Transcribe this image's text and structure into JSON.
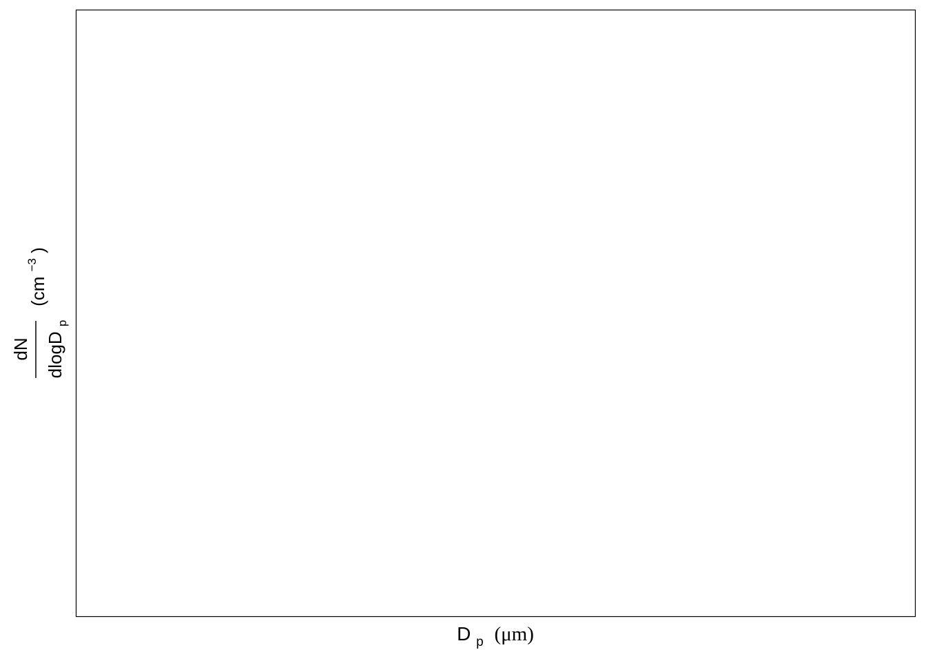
{
  "chart_data": {
    "type": "scatter",
    "title": "",
    "xlabel": {
      "main": "D",
      "sub": "p",
      "unit": "(μm)"
    },
    "ylabel": {
      "numerator": "dN",
      "denominator_main": "dlogD",
      "denominator_sub": "p",
      "unit_prefix": "(cm",
      "unit_exponent": "−3",
      "unit_suffix": ")"
    },
    "series": [],
    "x": [],
    "grid": false,
    "legend": "none"
  },
  "colors": {
    "panel_border": "#000000",
    "background": "#ffffff"
  }
}
